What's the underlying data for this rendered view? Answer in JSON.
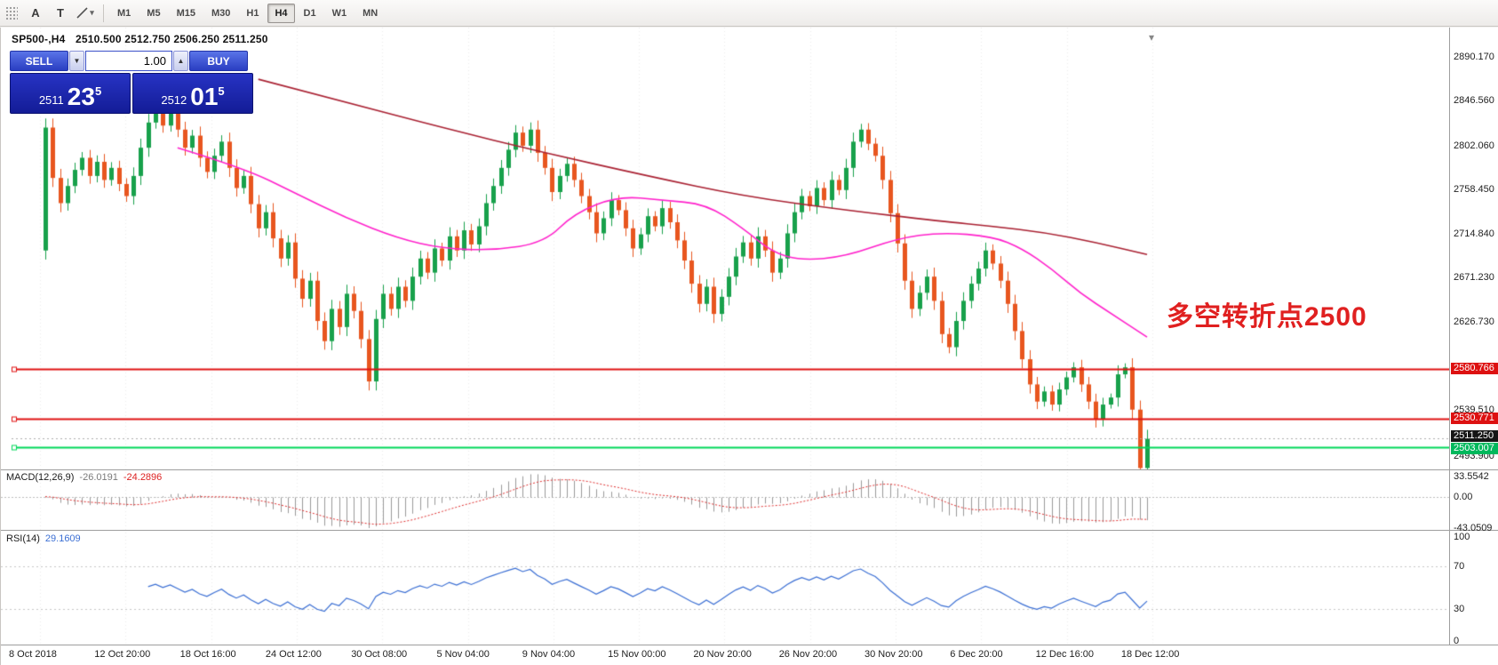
{
  "toolbar": {
    "tools": [
      {
        "label": "A"
      },
      {
        "label": "T"
      }
    ],
    "timeframes": [
      {
        "label": "M1",
        "active": false
      },
      {
        "label": "M5",
        "active": false
      },
      {
        "label": "M15",
        "active": false
      },
      {
        "label": "M30",
        "active": false
      },
      {
        "label": "H1",
        "active": false
      },
      {
        "label": "H4",
        "active": true
      },
      {
        "label": "D1",
        "active": false
      },
      {
        "label": "W1",
        "active": false
      },
      {
        "label": "MN",
        "active": false
      }
    ]
  },
  "icons": {
    "dropdown": "▾",
    "volume_down": "▼",
    "volume_up": "▲"
  },
  "chart": {
    "symbol_tf": "SP500-,H4",
    "ohlc_text": "2510.500 2512.750 2506.250 2511.250"
  },
  "trade_panel": {
    "sell_label": "SELL",
    "buy_label": "BUY",
    "volume": "1.00",
    "sell_small": "2511",
    "sell_big": "23",
    "sell_sup": "5",
    "buy_small": "2512",
    "buy_big": "01",
    "buy_sup": "5"
  },
  "chart_data": {
    "type": "candlestick",
    "symbol": "SP500-",
    "timeframe": "H4",
    "ohlc_display": {
      "open": "2510.500",
      "high": "2512.750",
      "low": "2506.250",
      "close": "2511.250"
    },
    "price_axis": {
      "ticks": [
        "2890.170",
        "2846.560",
        "2802.060",
        "2758.450",
        "2714.840",
        "2671.230",
        "2626.730",
        "2539.510",
        "2493.900"
      ]
    },
    "candles": {
      "first_open": 2698,
      "up_color": "#18a14b",
      "down_color": "#e8561f",
      "closes": [
        2820,
        2770,
        2745,
        2762,
        2778,
        2790,
        2772,
        2786,
        2768,
        2780,
        2764,
        2752,
        2772,
        2800,
        2825,
        2838,
        2822,
        2835,
        2818,
        2800,
        2812,
        2790,
        2776,
        2792,
        2806,
        2780,
        2760,
        2772,
        2744,
        2720,
        2736,
        2710,
        2690,
        2706,
        2670,
        2650,
        2668,
        2628,
        2608,
        2640,
        2622,
        2655,
        2638,
        2610,
        2568,
        2630,
        2655,
        2640,
        2662,
        2648,
        2672,
        2690,
        2676,
        2700,
        2688,
        2712,
        2698,
        2718,
        2704,
        2722,
        2745,
        2762,
        2780,
        2798,
        2815,
        2802,
        2818,
        2795,
        2780,
        2756,
        2772,
        2784,
        2768,
        2752,
        2736,
        2715,
        2730,
        2748,
        2738,
        2720,
        2700,
        2714,
        2732,
        2722,
        2740,
        2726,
        2708,
        2688,
        2665,
        2645,
        2662,
        2635,
        2652,
        2672,
        2692,
        2706,
        2690,
        2712,
        2698,
        2676,
        2690,
        2715,
        2736,
        2752,
        2742,
        2760,
        2748,
        2768,
        2758,
        2780,
        2806,
        2818,
        2804,
        2792,
        2768,
        2735,
        2705,
        2668,
        2640,
        2656,
        2672,
        2648,
        2615,
        2602,
        2628,
        2648,
        2665,
        2680,
        2698,
        2685,
        2668,
        2645,
        2618,
        2590,
        2565,
        2548,
        2558,
        2545,
        2560,
        2572,
        2582,
        2565,
        2548,
        2530,
        2545,
        2552,
        2575,
        2582,
        2540,
        2482,
        2511
      ]
    },
    "ma_fast": {
      "name": "ma-fast",
      "color": "#ff22cc",
      "points": [
        [
          18,
          2800
        ],
        [
          27,
          2780
        ],
        [
          34,
          2755
        ],
        [
          41,
          2730
        ],
        [
          48,
          2710
        ],
        [
          54,
          2700
        ],
        [
          61,
          2698
        ],
        [
          68,
          2706
        ],
        [
          72,
          2735
        ],
        [
          78,
          2752
        ],
        [
          84,
          2748
        ],
        [
          90,
          2744
        ],
        [
          95,
          2720
        ],
        [
          99,
          2696
        ],
        [
          103,
          2688
        ],
        [
          109,
          2692
        ],
        [
          116,
          2710
        ],
        [
          122,
          2716
        ],
        [
          129,
          2712
        ],
        [
          133,
          2700
        ],
        [
          137,
          2680
        ],
        [
          141,
          2655
        ],
        [
          145,
          2636
        ],
        [
          150,
          2612
        ]
      ]
    },
    "ma_slow": {
      "name": "ma-slow",
      "color": "#aa2233",
      "points": [
        [
          29,
          2868
        ],
        [
          41,
          2845
        ],
        [
          54,
          2820
        ],
        [
          68,
          2795
        ],
        [
          82,
          2772
        ],
        [
          95,
          2752
        ],
        [
          109,
          2738
        ],
        [
          122,
          2727
        ],
        [
          129,
          2722
        ],
        [
          136,
          2716
        ],
        [
          143,
          2706
        ],
        [
          150,
          2694
        ]
      ]
    },
    "levels": [
      {
        "price": 2580.766,
        "label": "2580.766",
        "color": "#e01212",
        "width": 2,
        "style": "solid",
        "badge": "#dd1111",
        "handle": true
      },
      {
        "price": 2530.771,
        "label": "2530.771",
        "color": "#e01212",
        "width": 2,
        "style": "solid",
        "badge": "#dd1111",
        "handle": true
      },
      {
        "price": 2503.007,
        "label": "2503.007",
        "color": "#00d75a",
        "width": 2,
        "style": "solid",
        "badge": "#00b85c",
        "handle": true
      },
      {
        "price": 2511.25,
        "label": "2511.250",
        "color": "#b0b0b0",
        "width": 1,
        "style": "dotted",
        "badge": "#151515",
        "handle": false
      }
    ],
    "macd": {
      "name": "MACD(12,26,9)",
      "value": "-26.0191",
      "signal_value": "-24.2896",
      "axis_labels": [
        "33.5542",
        "0.00",
        "-43.0509"
      ],
      "axis_max": 33.5542,
      "axis_min": -43.0509
    },
    "rsi": {
      "name": "RSI(14)",
      "value": "29.1609",
      "axis_labels": [
        "100",
        "70",
        "30",
        "0"
      ],
      "grid_levels": [
        70,
        30
      ]
    },
    "time_labels": [
      "8 Oct 2018",
      "12 Oct 20:00",
      "18 Oct 16:00",
      "24 Oct 12:00",
      "30 Oct 08:00",
      "5 Nov 04:00",
      "9 Nov 04:00",
      "15 Nov 00:00",
      "20 Nov 20:00",
      "26 Nov 20:00",
      "30 Nov 20:00",
      "6 Dec 20:00",
      "12 Dec 16:00",
      "18 Dec 12:00"
    ],
    "annotation": {
      "text": "多空转折点2500",
      "color": "#e02020"
    }
  }
}
